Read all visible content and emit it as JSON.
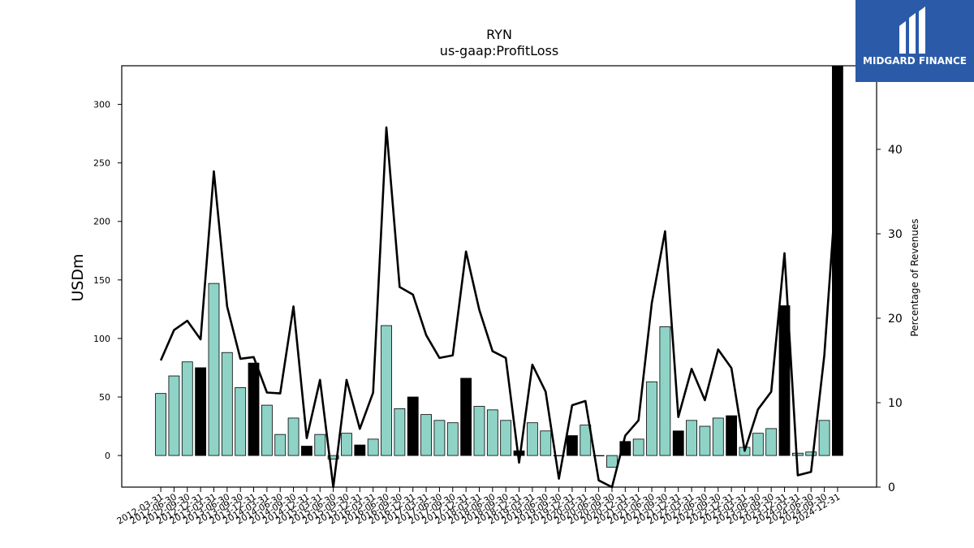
{
  "chart_data": {
    "type": "bar",
    "title": "RYN",
    "subtitle": "us-gaap:ProfitLoss",
    "ylabel": "USDm",
    "y2label": "Percentage of Revenues",
    "ylim": [
      -27,
      333
    ],
    "y2lim": [
      0,
      49.9
    ],
    "yticks": [
      0,
      50,
      100,
      150,
      200,
      250,
      300
    ],
    "y2ticks": [
      0,
      10,
      20,
      30,
      40
    ],
    "categories": [
      "2012-03-31",
      "2012-06-30",
      "2012-09-30",
      "2012-12-31",
      "2013-03-31",
      "2013-06-30",
      "2013-09-30",
      "2013-12-31",
      "2014-03-31",
      "2014-06-30",
      "2014-09-30",
      "2014-12-31",
      "2015-03-31",
      "2015-06-30",
      "2015-09-30",
      "2015-12-31",
      "2016-03-31",
      "2016-06-30",
      "2016-09-30",
      "2016-12-31",
      "2017-03-31",
      "2017-06-30",
      "2017-09-30",
      "2017-12-31",
      "2018-03-31",
      "2018-06-30",
      "2018-09-30",
      "2018-12-31",
      "2019-03-31",
      "2019-06-30",
      "2019-09-30",
      "2019-12-31",
      "2020-03-31",
      "2020-06-30",
      "2020-09-30",
      "2020-12-31",
      "2021-03-31",
      "2021-06-30",
      "2021-09-30",
      "2021-12-31",
      "2022-03-31",
      "2022-06-30",
      "2022-09-30",
      "2022-12-31",
      "2023-03-31",
      "2023-06-30",
      "2023-09-30",
      "2023-12-31",
      "2024-03-31",
      "2024-06-30",
      "2024-09-30",
      "2024-12-31"
    ],
    "series": [
      {
        "kind": "bar",
        "axis": "left",
        "values": [
          53,
          68,
          80,
          75,
          147,
          88,
          58,
          79,
          43,
          18,
          32,
          8,
          18,
          -3,
          19,
          9,
          14,
          111,
          40,
          50,
          35,
          30,
          28,
          66,
          42,
          39,
          30,
          4,
          28,
          21,
          0,
          17,
          26,
          0,
          -10,
          12,
          14,
          63,
          110,
          21,
          30,
          25,
          32,
          34,
          7,
          19,
          23,
          128,
          2,
          3,
          30,
          340
        ],
        "year_end": [
          false,
          false,
          false,
          true,
          false,
          false,
          false,
          true,
          false,
          false,
          false,
          true,
          false,
          false,
          false,
          true,
          false,
          false,
          false,
          true,
          false,
          false,
          false,
          true,
          false,
          false,
          false,
          true,
          false,
          false,
          false,
          true,
          false,
          false,
          false,
          true,
          false,
          false,
          false,
          true,
          false,
          false,
          false,
          true,
          false,
          false,
          false,
          true,
          false,
          false,
          false,
          true
        ]
      },
      {
        "kind": "line",
        "axis": "right",
        "values": [
          15.0,
          18.6,
          19.7,
          17.5,
          37.4,
          21.4,
          15.2,
          15.4,
          11.2,
          11.1,
          21.4,
          5.8,
          12.7,
          -1.0,
          12.7,
          6.9,
          11.2,
          42.6,
          23.7,
          22.8,
          18.0,
          15.3,
          15.6,
          27.9,
          21.0,
          16.1,
          15.3,
          2.9,
          14.5,
          11.3,
          1.0,
          9.7,
          10.2,
          0.8,
          -1.5,
          6.1,
          7.9,
          21.8,
          30.3,
          8.3,
          14.0,
          10.3,
          16.3,
          14.1,
          4.3,
          9.2,
          11.3,
          27.7,
          1.4,
          1.8,
          15.6,
          37.8
        ]
      }
    ],
    "colors": {
      "bar": "#8fd3c7",
      "bar_year_end": "#000000",
      "bar_edge": "#000000",
      "line": "#000000"
    }
  },
  "watermark": {
    "text": "MIDGARD FINANCE",
    "background": "#2b5aa8",
    "foreground": "#ffffff"
  }
}
